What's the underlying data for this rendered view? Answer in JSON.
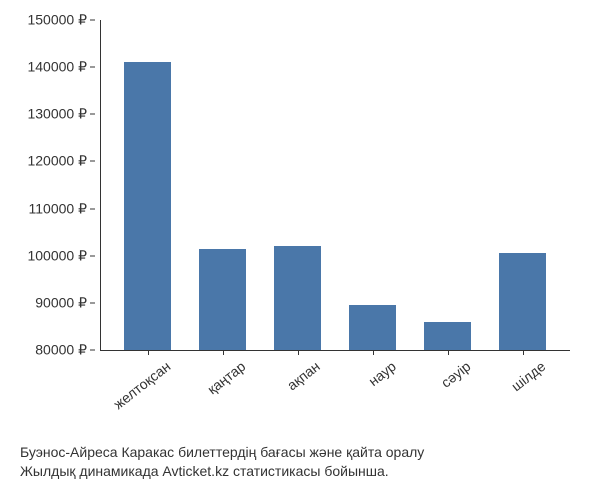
{
  "chart": {
    "type": "bar",
    "categories": [
      "желтоқсан",
      "қаңтар",
      "ақпан",
      "наур",
      "сәуір",
      "шілде"
    ],
    "values": [
      141000,
      101500,
      102000,
      89500,
      86000,
      100500
    ],
    "bar_color": "#4a77a9",
    "ylim": [
      80000,
      150000
    ],
    "ytick_step": 10000,
    "yticks": [
      80000,
      90000,
      100000,
      110000,
      120000,
      130000,
      140000,
      150000
    ],
    "ytick_labels": [
      "80000 ₽",
      "90000 ₽",
      "100000 ₽",
      "110000 ₽",
      "120000 ₽",
      "130000 ₽",
      "140000 ₽",
      "150000 ₽"
    ],
    "background_color": "#ffffff",
    "text_color": "#333333",
    "tick_fontsize": 14,
    "caption_fontsize": 14,
    "x_label_rotation": -38,
    "bar_width": 0.62
  },
  "caption": {
    "line1": "Буэнос-Айреса Каракас билеттердің бағасы және қайта оралу",
    "line2": "Жылдық динамикада Avticket.kz статистикасы бойынша."
  }
}
